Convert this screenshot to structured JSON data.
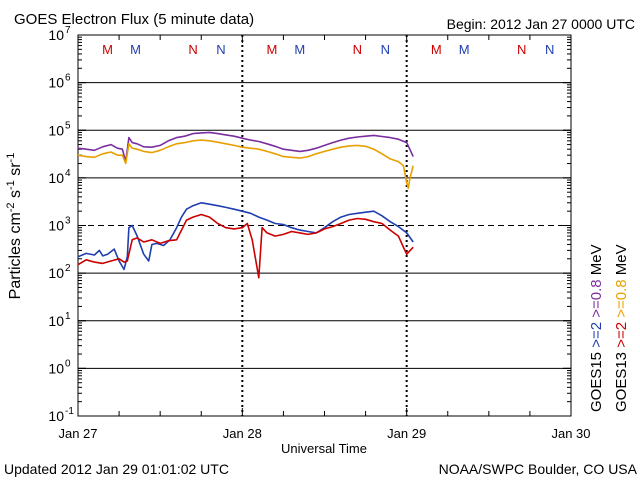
{
  "chart_data": {
    "type": "line",
    "title": "GOES Electron Flux (5 minute data)",
    "begin_label": "Begin: 2012 Jan 27 0000 UTC",
    "xlabel": "Universal Time",
    "ylabel": "Particles cm^-2 s^-1 sr^-1",
    "updated_label": "Updated 2012 Jan 29 01:01:02 UTC",
    "credit_label": "NOAA/SWPC Boulder, CO USA",
    "x_unit": "days since 2012 Jan 27 0000 UTC",
    "xlim": [
      0,
      3
    ],
    "x_ticks": [
      {
        "value": 0,
        "label": "Jan 27"
      },
      {
        "value": 1,
        "label": "Jan 28"
      },
      {
        "value": 2,
        "label": "Jan 29"
      },
      {
        "value": 3,
        "label": "Jan 30"
      }
    ],
    "y_scale": "log",
    "ylim_exponent": [
      -1,
      7
    ],
    "y_ticks": [
      {
        "base": "10",
        "exp": "7"
      },
      {
        "base": "10",
        "exp": "6"
      },
      {
        "base": "10",
        "exp": "5"
      },
      {
        "base": "10",
        "exp": "4"
      },
      {
        "base": "10",
        "exp": "3"
      },
      {
        "base": "10",
        "exp": "2"
      },
      {
        "base": "10",
        "exp": "1"
      },
      {
        "base": "10",
        "exp": "0"
      },
      {
        "base": "10",
        "exp": "-1"
      }
    ],
    "day_markers": [
      {
        "label": "M",
        "x": 0.18,
        "color": "#cc0000"
      },
      {
        "label": "M",
        "x": 0.35,
        "color": "#1f3fb0"
      },
      {
        "label": "N",
        "x": 0.7,
        "color": "#cc0000"
      },
      {
        "label": "N",
        "x": 0.87,
        "color": "#1f3fb0"
      },
      {
        "label": "M",
        "x": 1.18,
        "color": "#cc0000"
      },
      {
        "label": "M",
        "x": 1.35,
        "color": "#1f3fb0"
      },
      {
        "label": "N",
        "x": 1.7,
        "color": "#cc0000"
      },
      {
        "label": "N",
        "x": 1.87,
        "color": "#1f3fb0"
      },
      {
        "label": "M",
        "x": 2.18,
        "color": "#cc0000"
      },
      {
        "label": "M",
        "x": 2.35,
        "color": "#1f3fb0"
      },
      {
        "label": "N",
        "x": 2.7,
        "color": "#cc0000"
      },
      {
        "label": "N",
        "x": 2.87,
        "color": "#1f3fb0"
      }
    ],
    "threshold_line": 1000,
    "legend": [
      {
        "sat": "GOES15",
        "energy": ">=2",
        "energy_color": "#1f3fb0",
        "high": ">=0.8",
        "high_color": "#7a2ea0",
        "unit": "MeV",
        "sat_color": "#000000"
      },
      {
        "sat": "GOES13",
        "energy": ">=2",
        "energy_color": "#cc0000",
        "high": ">=0.8",
        "high_color": "#e8a000",
        "unit": "MeV",
        "sat_color": "#000000"
      }
    ],
    "series": [
      {
        "name": "GOES15 >=0.8 MeV",
        "color": "#7a2ea0",
        "x": [
          0.0,
          0.05,
          0.1,
          0.15,
          0.2,
          0.24,
          0.27,
          0.29,
          0.31,
          0.33,
          0.36,
          0.4,
          0.45,
          0.5,
          0.55,
          0.6,
          0.65,
          0.7,
          0.75,
          0.8,
          0.85,
          0.9,
          0.95,
          1.0,
          1.05,
          1.1,
          1.15,
          1.2,
          1.25,
          1.3,
          1.35,
          1.4,
          1.45,
          1.5,
          1.55,
          1.6,
          1.65,
          1.7,
          1.75,
          1.8,
          1.85,
          1.9,
          1.95,
          2.0,
          2.04
        ],
        "values": [
          42000,
          40000,
          38000,
          45000,
          50000,
          42000,
          40000,
          22000,
          70000,
          55000,
          52000,
          45000,
          44000,
          48000,
          60000,
          70000,
          75000,
          85000,
          88000,
          90000,
          85000,
          80000,
          75000,
          68000,
          62000,
          58000,
          52000,
          46000,
          40000,
          38000,
          36000,
          38000,
          42000,
          48000,
          55000,
          62000,
          68000,
          72000,
          75000,
          78000,
          74000,
          70000,
          65000,
          55000,
          28000
        ]
      },
      {
        "name": "GOES13 >=0.8 MeV",
        "color": "#e8a000",
        "x": [
          0.0,
          0.05,
          0.1,
          0.15,
          0.2,
          0.24,
          0.27,
          0.29,
          0.31,
          0.33,
          0.36,
          0.4,
          0.45,
          0.5,
          0.55,
          0.6,
          0.65,
          0.7,
          0.75,
          0.8,
          0.85,
          0.9,
          0.95,
          1.0,
          1.05,
          1.1,
          1.15,
          1.2,
          1.25,
          1.3,
          1.35,
          1.4,
          1.45,
          1.5,
          1.55,
          1.6,
          1.65,
          1.7,
          1.75,
          1.8,
          1.85,
          1.9,
          1.95,
          1.98,
          2.0,
          2.01,
          2.02,
          2.04
        ],
        "values": [
          30000,
          28000,
          27000,
          32000,
          35000,
          30000,
          30000,
          20000,
          52000,
          42000,
          40000,
          36000,
          34000,
          38000,
          45000,
          52000,
          55000,
          60000,
          62000,
          60000,
          56000,
          52000,
          48000,
          44000,
          42000,
          40000,
          36000,
          32000,
          28000,
          27000,
          26000,
          28000,
          32000,
          36000,
          40000,
          44000,
          47000,
          48000,
          46000,
          40000,
          32000,
          25000,
          22000,
          18000,
          8000,
          6000,
          10000,
          18000
        ]
      },
      {
        "name": "GOES15 >=2 MeV",
        "color": "#1f3fb0",
        "x": [
          0.0,
          0.05,
          0.1,
          0.13,
          0.15,
          0.18,
          0.22,
          0.25,
          0.28,
          0.3,
          0.31,
          0.33,
          0.36,
          0.4,
          0.43,
          0.45,
          0.48,
          0.52,
          0.56,
          0.6,
          0.63,
          0.66,
          0.7,
          0.75,
          0.8,
          0.85,
          0.9,
          0.95,
          1.0,
          1.05,
          1.1,
          1.15,
          1.2,
          1.25,
          1.3,
          1.35,
          1.4,
          1.45,
          1.5,
          1.55,
          1.6,
          1.65,
          1.7,
          1.75,
          1.8,
          1.85,
          1.9,
          1.95,
          2.0,
          2.04
        ],
        "values": [
          220,
          260,
          240,
          300,
          230,
          250,
          320,
          180,
          120,
          220,
          900,
          1000,
          600,
          250,
          180,
          400,
          420,
          380,
          500,
          900,
          1500,
          2200,
          2600,
          3000,
          2800,
          2600,
          2400,
          2200,
          2000,
          1800,
          1500,
          1300,
          1100,
          1050,
          900,
          800,
          750,
          700,
          900,
          1200,
          1500,
          1700,
          1800,
          1900,
          2000,
          1600,
          1200,
          950,
          700,
          450
        ]
      },
      {
        "name": "GOES13 >=2 MeV",
        "color": "#cc0000",
        "x": [
          0.0,
          0.05,
          0.1,
          0.15,
          0.2,
          0.25,
          0.28,
          0.3,
          0.33,
          0.36,
          0.4,
          0.45,
          0.5,
          0.55,
          0.6,
          0.63,
          0.66,
          0.7,
          0.75,
          0.8,
          0.85,
          0.9,
          0.95,
          1.0,
          1.03,
          1.06,
          1.1,
          1.12,
          1.15,
          1.2,
          1.25,
          1.3,
          1.35,
          1.4,
          1.45,
          1.5,
          1.55,
          1.6,
          1.65,
          1.7,
          1.75,
          1.8,
          1.85,
          1.9,
          1.95,
          1.98,
          2.0,
          2.04
        ],
        "values": [
          150,
          190,
          170,
          160,
          180,
          200,
          170,
          180,
          500,
          550,
          450,
          500,
          420,
          480,
          500,
          800,
          1300,
          1500,
          1700,
          1500,
          1100,
          900,
          850,
          900,
          1100,
          500,
          80,
          900,
          700,
          600,
          650,
          750,
          700,
          650,
          700,
          850,
          950,
          1100,
          1300,
          1400,
          1350,
          1200,
          1100,
          800,
          600,
          350,
          250,
          350
        ]
      }
    ]
  }
}
